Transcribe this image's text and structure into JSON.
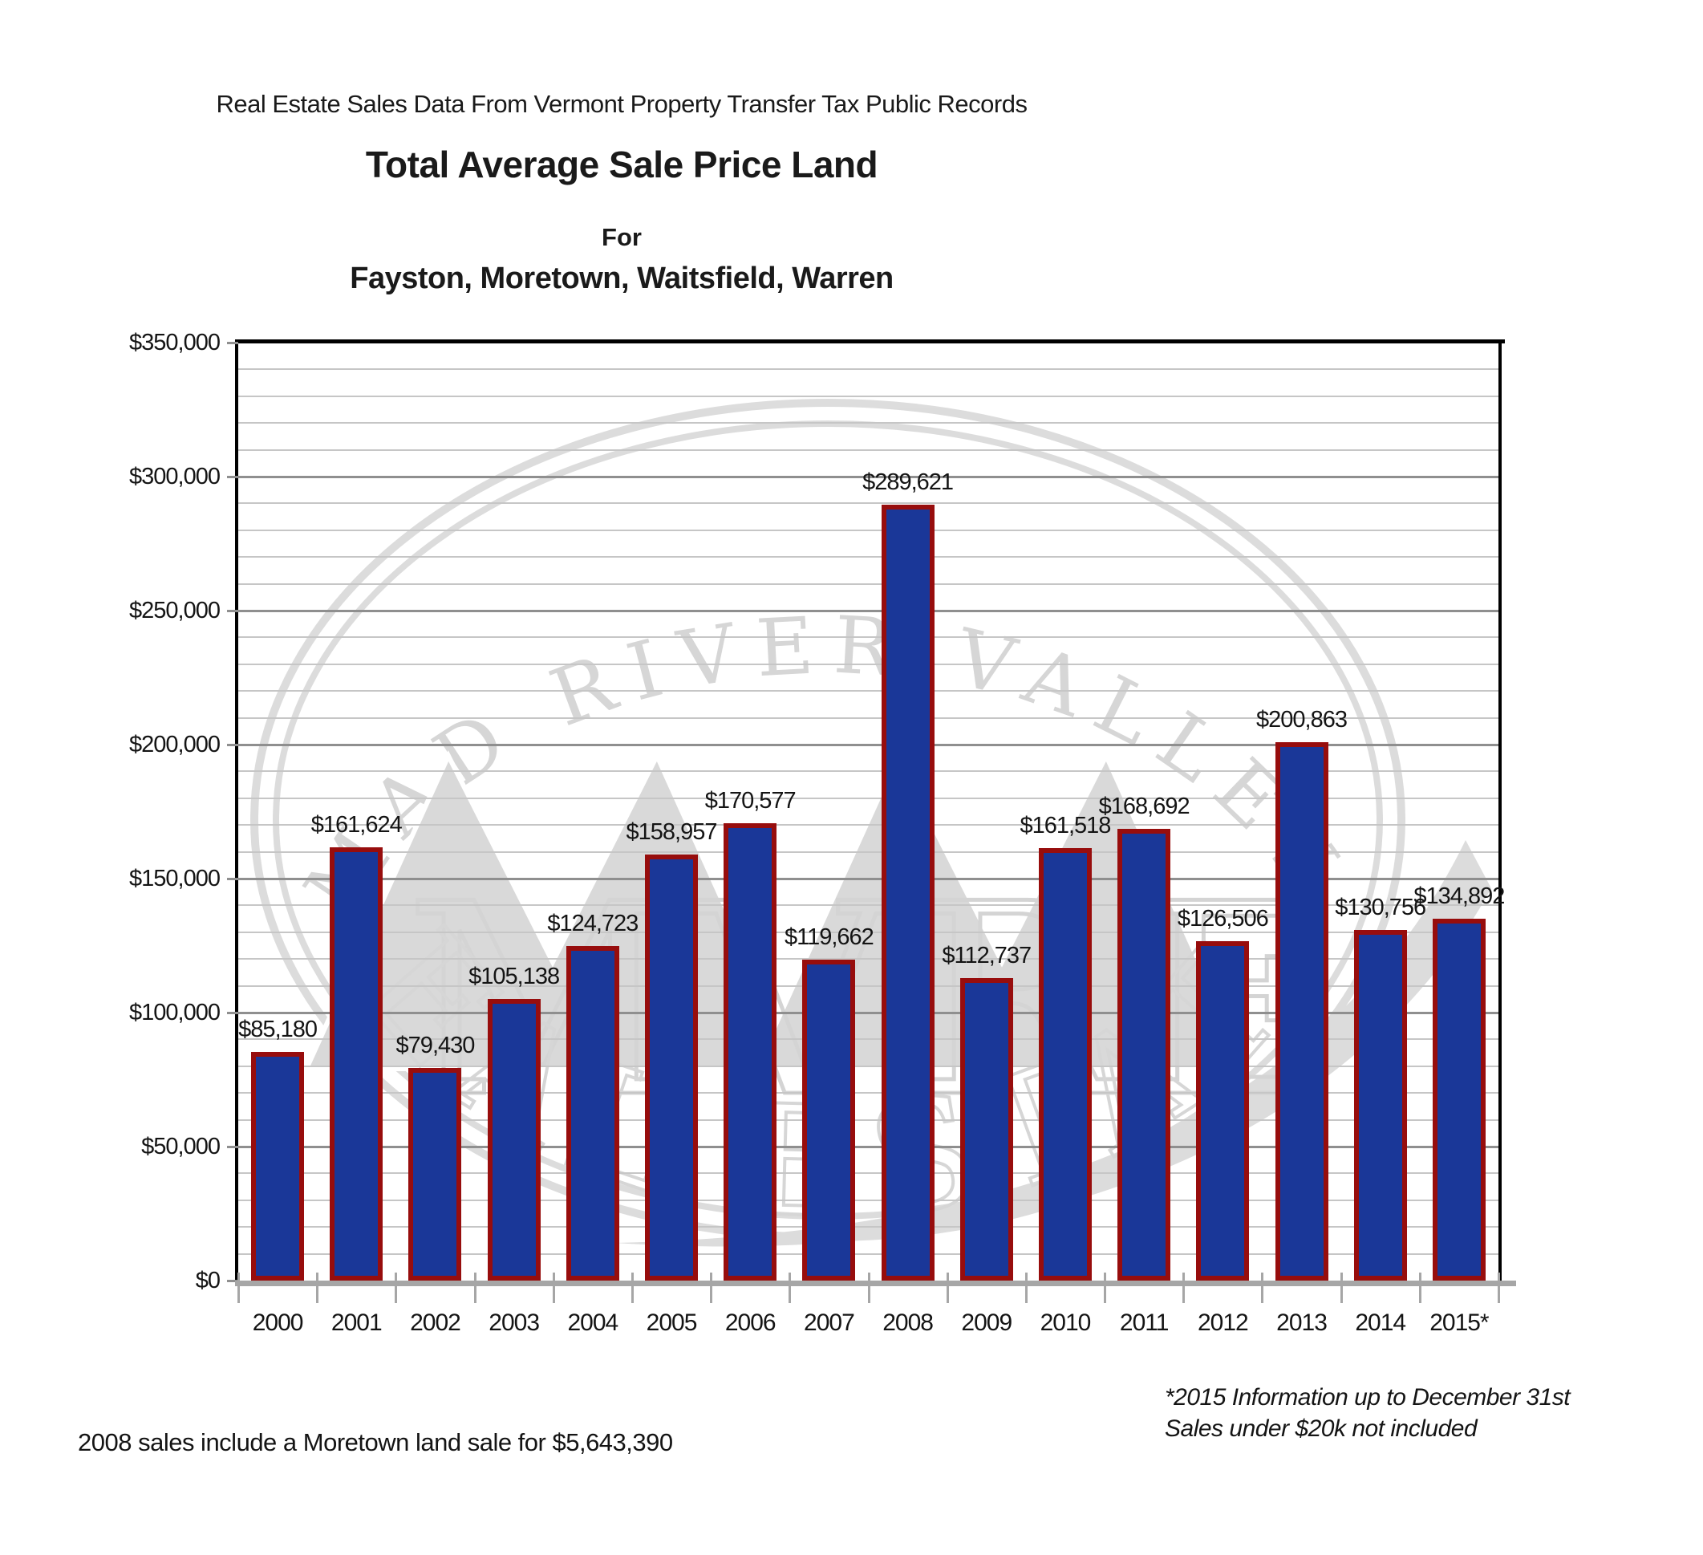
{
  "header": {
    "source_line": "Real Estate Sales Data From Vermont Property Transfer Tax Public Records",
    "title": "Total Average Sale Price Land",
    "for_line": "For",
    "towns_line": "Fayston, Moretown, Waitsfield, Warren"
  },
  "chart_data": {
    "type": "bar",
    "title": "Total Average Sale Price Land",
    "subtitle": "Fayston, Moretown, Waitsfield, Warren",
    "categories": [
      "2000",
      "2001",
      "2002",
      "2003",
      "2004",
      "2005",
      "2006",
      "2007",
      "2008",
      "2009",
      "2010",
      "2011",
      "2012",
      "2013",
      "2014",
      "2015*"
    ],
    "values": [
      85180,
      161624,
      79430,
      105138,
      124723,
      158957,
      170577,
      119662,
      289621,
      112737,
      161518,
      168692,
      126506,
      200863,
      130756,
      134892
    ],
    "data_labels": [
      "$85,180",
      "$161,624",
      "$79,430",
      "$105,138",
      "$124,723",
      "$158,957",
      "$170,577",
      "$119,662",
      "$289,621",
      "$112,737",
      "$161,518",
      "$168,692",
      "$126,506",
      "$200,863",
      "$130,756",
      "$134,892"
    ],
    "xlabel": "",
    "ylabel": "",
    "ylim": [
      0,
      350000
    ],
    "y_major_step": 50000,
    "y_minor_step": 10000,
    "y_tick_labels": [
      "$0",
      "$50,000",
      "$100,000",
      "$150,000",
      "$200,000",
      "$250,000",
      "$300,000",
      "$350,000"
    ],
    "grid": true,
    "legend": "none",
    "colors": {
      "bar_fill": "#1A3798",
      "bar_border": "#970D0D",
      "gridline_minor": "#C6C6C6",
      "gridline_major": "#8F8F8F",
      "axis_line": "#A6A6A6",
      "plot_border": "#000000",
      "watermark": "#D9D9D9"
    }
  },
  "watermark": {
    "top_arc_text": "MAD RIVER VALLEY",
    "monogram": "MVRE",
    "bottom_arc_text": "REAL ESTATE"
  },
  "footnotes": {
    "right_line1": "*2015 Information up to December 31st",
    "right_line2": "Sales under $20k not included",
    "left_line": "2008 sales include a Moretown land sale for $5,643,390"
  }
}
